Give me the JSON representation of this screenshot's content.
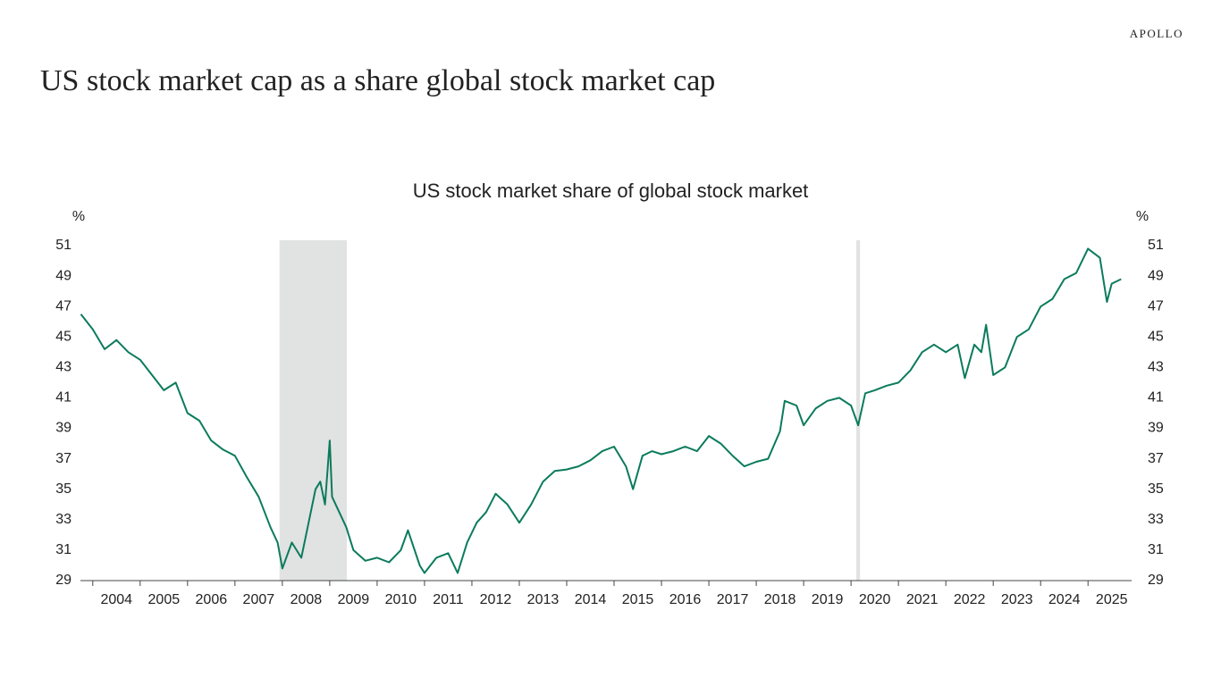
{
  "brand": "APOLLO",
  "chart_data": {
    "type": "line",
    "title": "US stock market cap as a share global stock market cap",
    "subtitle": "US stock market share of global stock market",
    "y_label": "%",
    "y2_label": "%",
    "x": [
      2003.75,
      2004.0,
      2004.25,
      2004.5,
      2004.75,
      2005.0,
      2005.25,
      2005.5,
      2005.75,
      2006.0,
      2006.25,
      2006.5,
      2006.75,
      2007.0,
      2007.25,
      2007.5,
      2007.75,
      2007.9,
      2008.0,
      2008.2,
      2008.4,
      2008.5,
      2008.6,
      2008.7,
      2008.8,
      2008.9,
      2009.0,
      2009.05,
      2009.2,
      2009.35,
      2009.5,
      2009.75,
      2010.0,
      2010.25,
      2010.5,
      2010.65,
      2010.9,
      2011.0,
      2011.25,
      2011.5,
      2011.7,
      2011.9,
      2012.1,
      2012.3,
      2012.5,
      2012.75,
      2013.0,
      2013.25,
      2013.5,
      2013.75,
      2014.0,
      2014.25,
      2014.5,
      2014.75,
      2015.0,
      2015.25,
      2015.4,
      2015.6,
      2015.8,
      2016.0,
      2016.25,
      2016.5,
      2016.75,
      2017.0,
      2017.25,
      2017.5,
      2017.75,
      2018.0,
      2018.25,
      2018.5,
      2018.6,
      2018.85,
      2019.0,
      2019.25,
      2019.5,
      2019.75,
      2020.0,
      2020.15,
      2020.3,
      2020.5,
      2020.75,
      2021.0,
      2021.25,
      2021.5,
      2021.75,
      2022.0,
      2022.25,
      2022.4,
      2022.6,
      2022.75,
      2022.85,
      2023.0,
      2023.25,
      2023.5,
      2023.75,
      2024.0,
      2024.25,
      2024.5,
      2024.75,
      2025.0,
      2025.25,
      2025.4,
      2025.5,
      2025.7
    ],
    "series": [
      {
        "color": "#0b7b5c",
        "values": [
          46.5,
          45.5,
          44.2,
          44.8,
          44.0,
          43.5,
          42.5,
          41.5,
          42.0,
          40.0,
          39.5,
          38.2,
          37.6,
          37.2,
          35.8,
          34.5,
          32.5,
          31.5,
          29.8,
          31.5,
          30.5,
          32.0,
          33.5,
          35.0,
          35.5,
          34.0,
          38.2,
          34.5,
          33.5,
          32.5,
          31.0,
          30.3,
          30.5,
          30.2,
          31.0,
          32.3,
          30.0,
          29.5,
          30.5,
          30.8,
          29.5,
          31.5,
          32.8,
          33.5,
          34.7,
          34.0,
          32.8,
          34.0,
          35.5,
          36.2,
          36.3,
          36.5,
          36.9,
          37.5,
          37.8,
          36.5,
          35.0,
          37.2,
          37.5,
          37.3,
          37.5,
          37.8,
          37.5,
          38.5,
          38.0,
          37.2,
          36.5,
          36.8,
          37.0,
          38.8,
          40.8,
          40.5,
          39.2,
          40.3,
          40.8,
          41.0,
          40.5,
          39.2,
          41.3,
          41.5,
          41.8,
          42.0,
          42.8,
          44.0,
          44.5,
          44.0,
          44.5,
          42.3,
          44.5,
          44.0,
          45.8,
          42.5,
          43.0,
          45.0,
          45.5,
          47.0,
          47.5,
          48.8,
          49.2,
          50.8,
          50.2,
          47.3,
          48.5,
          48.8
        ]
      }
    ],
    "xlim": [
      2003.74,
      2025.92
    ],
    "xticks": [
      2004,
      2005,
      2006,
      2007,
      2008,
      2009,
      2010,
      2011,
      2012,
      2013,
      2014,
      2015,
      2016,
      2017,
      2018,
      2019,
      2020,
      2021,
      2022,
      2023,
      2024,
      2025
    ],
    "ylim": [
      29,
      51.35
    ],
    "yticks": [
      29,
      31,
      33,
      35,
      37,
      39,
      41,
      43,
      45,
      47,
      49,
      51
    ],
    "y2lim": [
      29,
      51.35
    ],
    "y2ticks": [
      29,
      31,
      33,
      35,
      37,
      39,
      41,
      43,
      45,
      47,
      49,
      51
    ],
    "shaded_periods": [
      [
        2007.94,
        2009.36
      ],
      [
        2020.11,
        2020.19
      ]
    ],
    "shade_color": "#e1e2e2",
    "grid": false
  }
}
